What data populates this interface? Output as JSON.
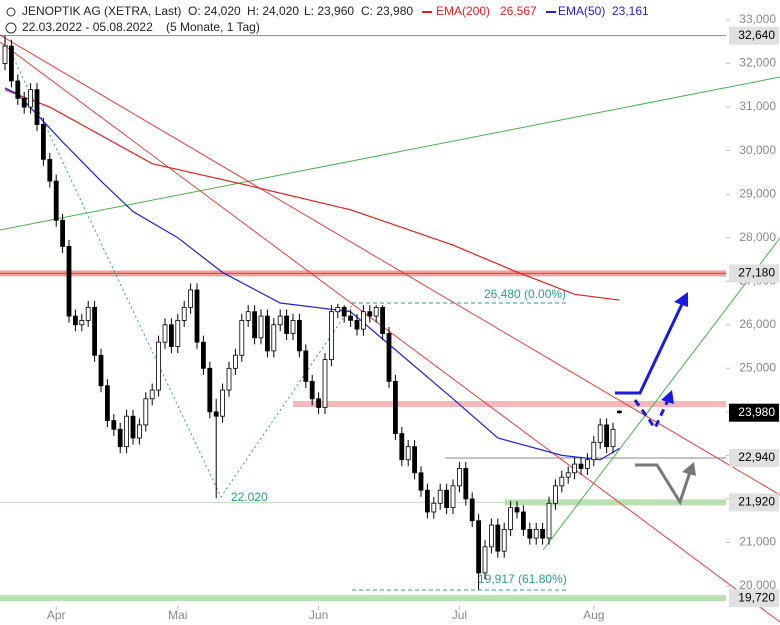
{
  "header": {
    "title": "JENOPTIK AG (XETRA, Last)",
    "open": "O: 24,020",
    "high": "H: 24,020",
    "low": "L: 23,960",
    "close": "C: 23,980",
    "range": "22.03.2022 - 05.08.2022",
    "period": "(5 Monate, 1 Tag)"
  },
  "chart_data": {
    "type": "candlestick",
    "ylim": [
      20000,
      33000
    ],
    "yticks": [
      {
        "value": 20000,
        "label": "20,000"
      },
      {
        "value": 21000,
        "label": "21,000"
      },
      {
        "value": 22000,
        "label": "22,000"
      },
      {
        "value": 23000,
        "label": "23,000"
      },
      {
        "value": 24000,
        "label": "24,000"
      },
      {
        "value": 25000,
        "label": "25,000"
      },
      {
        "value": 26000,
        "label": "26,000"
      },
      {
        "value": 27000,
        "label": "27,000"
      },
      {
        "value": 28000,
        "label": "28,000"
      },
      {
        "value": 29000,
        "label": "29,000"
      },
      {
        "value": 30000,
        "label": "30,000"
      },
      {
        "value": 31000,
        "label": "31,000"
      },
      {
        "value": 32000,
        "label": "32,000"
      },
      {
        "value": 33000,
        "label": "33,000"
      }
    ],
    "xticks": [
      {
        "value": 8,
        "label": "Apr"
      },
      {
        "value": 27,
        "label": "Mai"
      },
      {
        "value": 49,
        "label": "Jun"
      },
      {
        "value": 71,
        "label": "Jul"
      },
      {
        "value": 92,
        "label": "Aug"
      }
    ],
    "ohlc": [
      [
        32000,
        32640,
        31850,
        32400
      ],
      [
        32400,
        32550,
        31450,
        31600
      ],
      [
        31600,
        31750,
        31050,
        31200
      ],
      [
        31200,
        31350,
        30850,
        31000
      ],
      [
        31000,
        31550,
        30850,
        31400
      ],
      [
        31400,
        31550,
        30450,
        30600
      ],
      [
        30600,
        30750,
        29650,
        29800
      ],
      [
        29800,
        29950,
        29150,
        29300
      ],
      [
        29300,
        29450,
        28250,
        28400
      ],
      [
        28400,
        28550,
        27650,
        27800
      ],
      [
        27800,
        27950,
        26050,
        26200
      ],
      [
        26200,
        26350,
        25850,
        26000
      ],
      [
        26000,
        26250,
        25850,
        26100
      ],
      [
        26100,
        26550,
        25950,
        26400
      ],
      [
        26400,
        26550,
        25150,
        25300
      ],
      [
        25300,
        25450,
        24450,
        24600
      ],
      [
        24600,
        24750,
        23650,
        23800
      ],
      [
        23800,
        23950,
        23450,
        23600
      ],
      [
        23600,
        23750,
        23050,
        23200
      ],
      [
        23200,
        24050,
        23050,
        23900
      ],
      [
        23900,
        24050,
        23250,
        23400
      ],
      [
        23400,
        23850,
        23250,
        23700
      ],
      [
        23700,
        24450,
        23550,
        24300
      ],
      [
        24300,
        24650,
        24150,
        24500
      ],
      [
        24500,
        25750,
        24350,
        25600
      ],
      [
        25600,
        26150,
        25450,
        26000
      ],
      [
        26000,
        26150,
        25350,
        25500
      ],
      [
        25500,
        26250,
        25350,
        26100
      ],
      [
        26100,
        26550,
        25950,
        26400
      ],
      [
        26400,
        26950,
        26250,
        26800
      ],
      [
        26800,
        26950,
        25450,
        25600
      ],
      [
        25600,
        25750,
        24850,
        25000
      ],
      [
        25000,
        25150,
        23850,
        24000
      ],
      [
        24000,
        24300,
        22020,
        23900
      ],
      [
        23900,
        24650,
        23750,
        24500
      ],
      [
        24500,
        25150,
        24350,
        25000
      ],
      [
        25000,
        25450,
        24850,
        25300
      ],
      [
        25300,
        26250,
        25150,
        26100
      ],
      [
        26100,
        26450,
        25950,
        26300
      ],
      [
        26300,
        26450,
        25550,
        25700
      ],
      [
        25700,
        26350,
        25550,
        26200
      ],
      [
        26200,
        26350,
        25250,
        25400
      ],
      [
        25400,
        26150,
        25250,
        26000
      ],
      [
        26000,
        26350,
        25850,
        26200
      ],
      [
        26200,
        26350,
        25650,
        25800
      ],
      [
        25800,
        26250,
        25650,
        26100
      ],
      [
        26100,
        26250,
        25250,
        25400
      ],
      [
        25400,
        25550,
        24550,
        24700
      ],
      [
        24700,
        24850,
        24150,
        24300
      ],
      [
        24300,
        24450,
        23950,
        24100
      ],
      [
        24100,
        25350,
        23950,
        25200
      ],
      [
        25200,
        26450,
        25050,
        26300
      ],
      [
        26300,
        26480,
        26150,
        26400
      ],
      [
        26400,
        26450,
        26050,
        26200
      ],
      [
        26200,
        26350,
        25950,
        26100
      ],
      [
        26100,
        26250,
        25750,
        25900
      ],
      [
        25900,
        26450,
        25750,
        26300
      ],
      [
        26300,
        26450,
        26050,
        26200
      ],
      [
        26200,
        26450,
        26050,
        26400
      ],
      [
        26400,
        26450,
        25650,
        25800
      ],
      [
        25800,
        25950,
        24550,
        24700
      ],
      [
        24700,
        24850,
        23350,
        23500
      ],
      [
        23500,
        23650,
        22750,
        22900
      ],
      [
        22900,
        23350,
        22750,
        23200
      ],
      [
        23200,
        23350,
        22450,
        22600
      ],
      [
        22600,
        22750,
        22050,
        22200
      ],
      [
        22200,
        22350,
        21550,
        21700
      ],
      [
        21700,
        22050,
        21550,
        21900
      ],
      [
        21900,
        22350,
        21750,
        22200
      ],
      [
        22200,
        22350,
        21650,
        21800
      ],
      [
        21800,
        22450,
        21650,
        22300
      ],
      [
        22300,
        22850,
        22150,
        22700
      ],
      [
        22700,
        22850,
        21850,
        22000
      ],
      [
        22000,
        22150,
        21350,
        21500
      ],
      [
        21500,
        21650,
        19917,
        20300
      ],
      [
        20300,
        21050,
        20150,
        20900
      ],
      [
        20900,
        21550,
        20750,
        21400
      ],
      [
        21400,
        21550,
        20650,
        20800
      ],
      [
        20800,
        21450,
        20650,
        21300
      ],
      [
        21300,
        21950,
        21150,
        21800
      ],
      [
        21800,
        21950,
        21550,
        21700
      ],
      [
        21700,
        21850,
        21150,
        21300
      ],
      [
        21300,
        21450,
        20950,
        21100
      ],
      [
        21100,
        21450,
        20950,
        21300
      ],
      [
        21300,
        21450,
        20950,
        21100
      ],
      [
        21100,
        22050,
        20950,
        21900
      ],
      [
        21900,
        22450,
        21750,
        22300
      ],
      [
        22300,
        22650,
        22150,
        22500
      ],
      [
        22500,
        22750,
        22350,
        22600
      ],
      [
        22600,
        22950,
        22450,
        22800
      ],
      [
        22800,
        22950,
        22550,
        22700
      ],
      [
        22700,
        23050,
        22550,
        22900
      ],
      [
        22900,
        23450,
        22750,
        23300
      ],
      [
        23300,
        23850,
        23150,
        23700
      ],
      [
        23700,
        23850,
        23050,
        23200
      ],
      [
        23200,
        23750,
        23050,
        23600
      ],
      [
        24020,
        24020,
        23960,
        23980
      ]
    ],
    "series": [
      {
        "name": "EMA(200)",
        "color": "#e02020",
        "last_label": "26,567",
        "x": [
          0,
          7,
          23,
          38,
          54,
          70,
          80,
          89,
          96
        ],
        "values": [
          31400,
          31000,
          29700,
          29200,
          28640,
          27830,
          27210,
          26700,
          26567
        ]
      },
      {
        "name": "EMA(50)",
        "color": "#2020e0",
        "last_label": "23,161",
        "x": [
          0,
          2,
          9,
          15,
          20,
          27,
          34,
          43,
          54,
          62,
          70,
          77,
          87,
          93,
          96
        ],
        "values": [
          31440,
          31300,
          30200,
          29300,
          28600,
          28000,
          27200,
          26500,
          26300,
          25300,
          24300,
          23400,
          23000,
          22900,
          23161
        ]
      }
    ],
    "levels": [
      {
        "value": 32640,
        "label": "32,640",
        "color": "#888888"
      },
      {
        "value": 27180,
        "label": "27,180",
        "color": "#f2a0a0"
      },
      {
        "value": 24180,
        "color": "#f4b8b8"
      },
      {
        "value": 22940,
        "label": "22,940",
        "color": "#888888"
      },
      {
        "value": 21920,
        "label": "21,920",
        "color": "#b8e0b0"
      },
      {
        "value": 19720,
        "label": "19,720",
        "color": "#b8e0b0"
      },
      {
        "value": 23980,
        "label": "23,980",
        "color": "#000000"
      }
    ],
    "annotations": [
      {
        "text": "26,480 (0.00%)",
        "value": 26480
      },
      {
        "text": "22.020",
        "value": 22020
      },
      {
        "text": "19,917 (61.80%)",
        "value": 19917
      }
    ]
  }
}
